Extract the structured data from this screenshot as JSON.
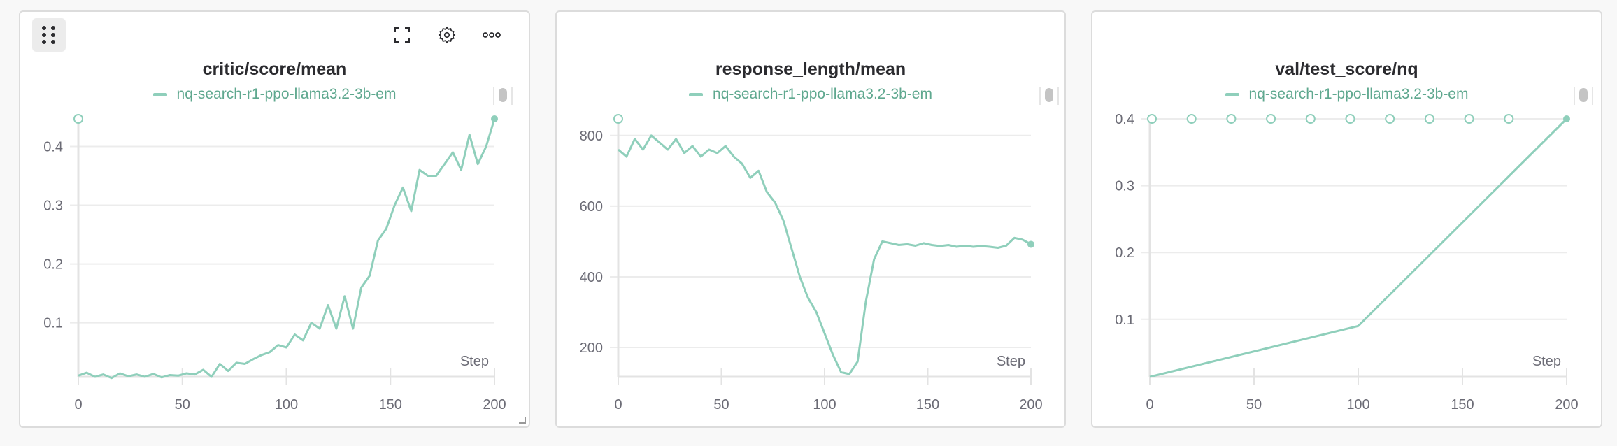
{
  "colors": {
    "series": "#8fcfbb",
    "legend_text": "#5fa88f",
    "grid": "#ececec",
    "axis": "#e3e3e3"
  },
  "toolbar": {
    "drag_icon": "drag-handle-icon",
    "fullscreen_icon": "fullscreen-icon",
    "settings_icon": "gear-icon",
    "more_icon": "more-horizontal-icon"
  },
  "chart_data": [
    {
      "type": "line",
      "title": "critic/score/mean",
      "legend": [
        "nq-search-r1-ppo-llama3.2-3b-em"
      ],
      "xlabel": "Step",
      "xlim": [
        0,
        200
      ],
      "ylim": [
        0.008,
        0.447
      ],
      "xticks": [
        "0",
        "50",
        "100",
        "150",
        "200"
      ],
      "yticks": [
        "0.1",
        "0.2",
        "0.3",
        "0.4"
      ],
      "grid": true,
      "series": [
        {
          "name": "nq-search-r1-ppo-llama3.2-3b-em",
          "x": [
            0,
            4,
            8,
            12,
            16,
            20,
            24,
            28,
            32,
            36,
            40,
            44,
            48,
            52,
            56,
            60,
            64,
            68,
            72,
            76,
            80,
            84,
            88,
            92,
            96,
            100,
            104,
            108,
            112,
            116,
            120,
            124,
            128,
            132,
            136,
            140,
            144,
            148,
            152,
            156,
            160,
            164,
            168,
            172,
            176,
            180,
            184,
            188,
            192,
            196,
            200
          ],
          "y": [
            0.01,
            0.015,
            0.008,
            0.012,
            0.006,
            0.014,
            0.009,
            0.012,
            0.008,
            0.013,
            0.007,
            0.011,
            0.01,
            0.014,
            0.012,
            0.02,
            0.008,
            0.03,
            0.018,
            0.032,
            0.03,
            0.038,
            0.045,
            0.05,
            0.062,
            0.058,
            0.08,
            0.07,
            0.1,
            0.09,
            0.13,
            0.09,
            0.145,
            0.09,
            0.16,
            0.18,
            0.24,
            0.26,
            0.3,
            0.33,
            0.29,
            0.36,
            0.35,
            0.35,
            0.37,
            0.39,
            0.36,
            0.42,
            0.37,
            0.4,
            0.447
          ]
        }
      ]
    },
    {
      "type": "line",
      "title": "response_length/mean",
      "legend": [
        "nq-search-r1-ppo-llama3.2-3b-em"
      ],
      "xlabel": "Step",
      "xlim": [
        0,
        200
      ],
      "ylim": [
        117,
        847
      ],
      "xticks": [
        "0",
        "50",
        "100",
        "150",
        "200"
      ],
      "yticks": [
        "200",
        "400",
        "600",
        "800"
      ],
      "grid": true,
      "series": [
        {
          "name": "nq-search-r1-ppo-llama3.2-3b-em",
          "x": [
            0,
            4,
            8,
            12,
            16,
            20,
            24,
            28,
            32,
            36,
            40,
            44,
            48,
            52,
            56,
            60,
            64,
            68,
            72,
            76,
            80,
            84,
            88,
            92,
            96,
            100,
            104,
            108,
            112,
            116,
            120,
            124,
            128,
            132,
            136,
            140,
            144,
            148,
            152,
            156,
            160,
            164,
            168,
            172,
            176,
            180,
            184,
            188,
            192,
            196,
            200
          ],
          "y": [
            760,
            740,
            790,
            760,
            800,
            780,
            760,
            790,
            750,
            770,
            740,
            760,
            750,
            770,
            740,
            720,
            680,
            700,
            640,
            610,
            560,
            480,
            400,
            340,
            300,
            240,
            180,
            130,
            125,
            160,
            330,
            450,
            500,
            495,
            490,
            492,
            488,
            495,
            490,
            487,
            490,
            485,
            488,
            485,
            487,
            485,
            482,
            488,
            510,
            505,
            492
          ]
        }
      ]
    },
    {
      "type": "line",
      "title": "val/test_score/nq",
      "legend": [
        "nq-search-r1-ppo-llama3.2-3b-em"
      ],
      "xlabel": "Step",
      "xlim": [
        0,
        200
      ],
      "ylim": [
        0.014,
        0.4
      ],
      "xticks": [
        "0",
        "50",
        "100",
        "150",
        "200"
      ],
      "yticks": [
        "0.1",
        "0.2",
        "0.3",
        "0.4"
      ],
      "grid": true,
      "series": [
        {
          "name": "nq-search-r1-ppo-llama3.2-3b-em",
          "x": [
            0,
            100,
            200
          ],
          "y": [
            0.014,
            0.09,
            0.4
          ]
        }
      ]
    }
  ]
}
